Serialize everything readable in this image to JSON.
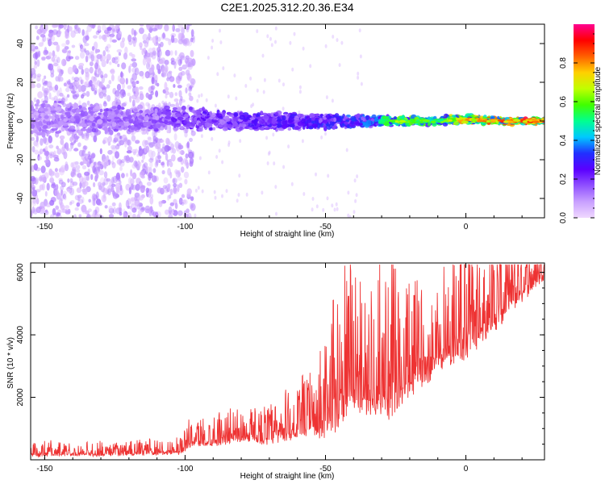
{
  "page_title": "C2E1.2025.312.20.36.E34",
  "chart_data": [
    {
      "id": "spectrogram",
      "type": "heatmap",
      "title": "C2E1.2025.312.20.36.E34",
      "xlabel": "Height of straight line (km)",
      "ylabel": "Frequency (Hz)",
      "xlim": [
        -155,
        28
      ],
      "ylim": [
        -50,
        50
      ],
      "x_ticks": [
        -150,
        -100,
        -50,
        0
      ],
      "y_ticks": [
        -40,
        -20,
        0,
        20,
        40
      ],
      "grid": false,
      "colorbar": {
        "label": "Normalized spectral amplitude",
        "range": [
          0,
          1
        ],
        "ticks": [
          0.0,
          0.2,
          0.4,
          0.6,
          0.8
        ],
        "tick_labels": [
          "0.0",
          "0.2",
          "0.4",
          "0.6",
          "0.8"
        ],
        "colormap": [
          "#f0d8ff",
          "#c8a0ff",
          "#9050ff",
          "#5a00ff",
          "#2030ff",
          "#00c8ff",
          "#00ff90",
          "#40ff00",
          "#c0ff00",
          "#ffd000",
          "#ff6000",
          "#ff0000",
          "#ff0090"
        ]
      },
      "band": [
        {
          "x": -150,
          "center": 2,
          "halfwidth": 6,
          "amp": 0.15
        },
        {
          "x": -130,
          "center": 1,
          "halfwidth": 5,
          "amp": 0.18
        },
        {
          "x": -110,
          "center": 1,
          "halfwidth": 4,
          "amp": 0.2
        },
        {
          "x": -100,
          "center": 1,
          "halfwidth": 4,
          "amp": 0.25
        },
        {
          "x": -80,
          "center": 0,
          "halfwidth": 3,
          "amp": 0.3
        },
        {
          "x": -60,
          "center": 0,
          "halfwidth": 3,
          "amp": 0.3
        },
        {
          "x": -50,
          "center": 0,
          "halfwidth": 2.5,
          "amp": 0.35
        },
        {
          "x": -35,
          "center": 0,
          "halfwidth": 2,
          "amp": 0.4
        },
        {
          "x": -25,
          "center": 0,
          "halfwidth": 1.5,
          "amp": 0.7
        },
        {
          "x": -10,
          "center": 0,
          "halfwidth": 1.5,
          "amp": 0.6
        },
        {
          "x": 0,
          "center": 1,
          "halfwidth": 1.5,
          "amp": 0.85
        },
        {
          "x": 10,
          "center": 0,
          "halfwidth": 1.2,
          "amp": 0.9
        },
        {
          "x": 28,
          "center": 0,
          "halfwidth": 1,
          "amp": 1.0
        }
      ],
      "scatter_extent": {
        "x_range": [
          -155,
          -97
        ],
        "y_range": [
          -50,
          50
        ],
        "amp": 0.1
      }
    },
    {
      "id": "snr",
      "type": "line",
      "xlabel": "Height of straight line (km)",
      "ylabel": "SNR (10 * v/v)",
      "xlim": [
        -155,
        28
      ],
      "ylim": [
        0,
        6300
      ],
      "x_ticks": [
        -150,
        -100,
        -50,
        0
      ],
      "y_ticks": [
        2000,
        4000,
        6000
      ],
      "grid": false,
      "line_color": "#ee3333",
      "series": [
        {
          "x": [
            -155,
            -150,
            -140,
            -130,
            -120,
            -110,
            -102,
            -98,
            -90,
            -80,
            -70,
            -60,
            -55,
            -50,
            -45,
            -40,
            -35,
            -30,
            -25,
            -22,
            -15,
            -10,
            -5,
            0,
            5,
            10,
            15,
            20,
            28
          ],
          "base": [
            120,
            130,
            150,
            140,
            160,
            180,
            200,
            450,
            500,
            650,
            550,
            800,
            900,
            700,
            1500,
            1900,
            1600,
            1800,
            1400,
            2100,
            2500,
            3000,
            3300,
            3500,
            3900,
            4200,
            4700,
            5200,
            5900
          ],
          "spread": [
            200,
            250,
            200,
            200,
            200,
            250,
            300,
            400,
            500,
            500,
            600,
            800,
            900,
            1500,
            2500,
            2400,
            1700,
            2000,
            2500,
            1600,
            1500,
            1500,
            1700,
            2200,
            1500,
            1500,
            1400,
            1000,
            700
          ]
        }
      ]
    }
  ]
}
